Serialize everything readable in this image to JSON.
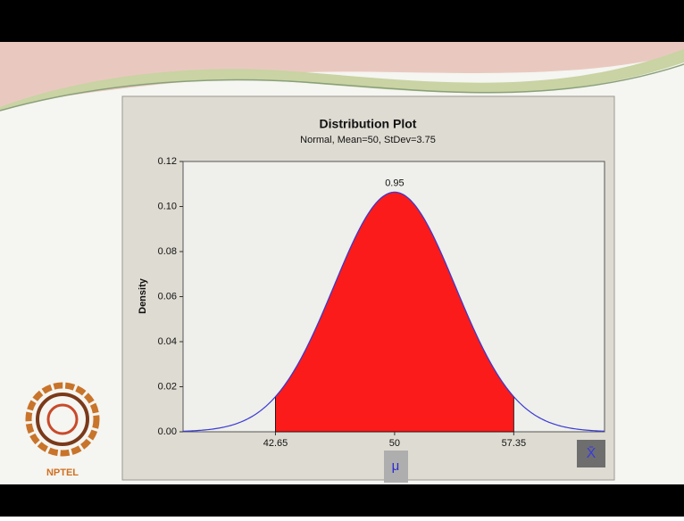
{
  "slide": {
    "logo": "NPTEL",
    "markers": [
      "μ",
      "X̄"
    ]
  },
  "chart_data": {
    "type": "distribution",
    "title": "Distribution Plot",
    "subtitle": "Normal, Mean=50, StDev=3.75",
    "y_label": "Density",
    "distribution": {
      "mean": 50,
      "sd": 3.75
    },
    "shaded_range": [
      42.65,
      57.35
    ],
    "shaded_area": 0.95,
    "line_color": "#3a3ad6",
    "fill_color": "#fb1b1b",
    "xlim": [
      36.95,
      62.95
    ],
    "xticks": [
      42.65,
      50,
      57.35
    ],
    "ylim": [
      0,
      0.12
    ],
    "yticks": [
      {
        "value": 0,
        "label": "0.00"
      },
      {
        "value": 0.02,
        "label": "0.02"
      },
      {
        "value": 0.04,
        "label": "0.04"
      },
      {
        "value": 0.06,
        "label": "0.06"
      },
      {
        "value": 0.08,
        "label": "0.08"
      },
      {
        "value": 0.1,
        "label": "0.10"
      },
      {
        "value": 0.12,
        "label": "0.12"
      }
    ]
  }
}
